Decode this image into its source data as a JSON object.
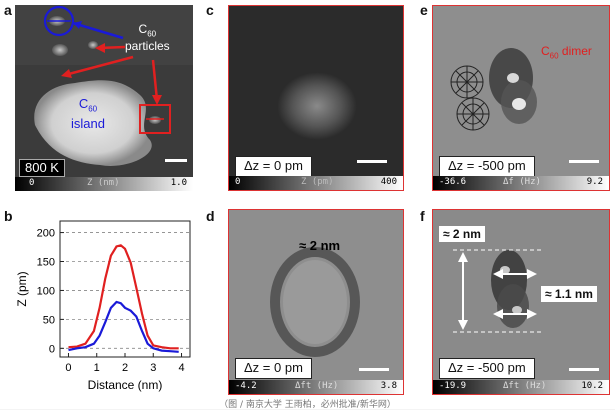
{
  "panels": {
    "a": {
      "letter": "a",
      "particles": "particles",
      "c60_sub": "60",
      "c": "C",
      "island": "island",
      "temp": "800 K",
      "cmin": "0",
      "cmax": "1.0",
      "cunit": "Z (nm)"
    },
    "b": {
      "letter": "b"
    },
    "c": {
      "letter": "c",
      "dz": "Δz = 0 pm",
      "cmin": "0",
      "cmax": "400",
      "cunit": "Z (pm)"
    },
    "d": {
      "letter": "d",
      "dz": "Δz = 0 pm",
      "size": "≈ 2 nm",
      "cmin": "-4.2",
      "cmax": "3.8",
      "cunit": "Δft (Hz)"
    },
    "e": {
      "letter": "e",
      "dz": "Δz = -500 pm",
      "dimer": "dimer",
      "cmin": "-36.6",
      "cmax": "9.2",
      "cunit": "Δf (Hz)"
    },
    "f": {
      "letter": "f",
      "dz": "Δz = -500 pm",
      "size": "≈ 2 nm",
      "width": "≈ 1.1 nm",
      "cmin": "-19.9",
      "cmax": "10.2",
      "cunit": "Δft (Hz)"
    }
  },
  "caption": "（图 / 南京大学 王雨柏，必州批准/新华网）",
  "colors": {
    "red": "#e02020",
    "blue": "#1a1ad8"
  },
  "chart_data": {
    "type": "line",
    "xlabel": "Distance (nm)",
    "ylabel": "Z (pm)",
    "xlim": [
      -0.3,
      4.3
    ],
    "ylim": [
      -15,
      220
    ],
    "xticks": [
      0,
      1,
      2,
      3,
      4
    ],
    "yticks": [
      0,
      50,
      100,
      150,
      200
    ],
    "grid": "horizontal dashed",
    "series": [
      {
        "color": "#e02020",
        "x": [
          0,
          0.3,
          0.6,
          0.9,
          1.1,
          1.3,
          1.5,
          1.7,
          1.85,
          2.0,
          2.2,
          2.4,
          2.6,
          2.8,
          3.0,
          3.3,
          3.6,
          3.9
        ],
        "y": [
          2,
          3,
          8,
          30,
          70,
          120,
          160,
          176,
          178,
          172,
          148,
          105,
          60,
          22,
          5,
          2,
          0,
          0
        ]
      },
      {
        "color": "#1a1ad8",
        "x": [
          0,
          0.3,
          0.6,
          0.9,
          1.1,
          1.3,
          1.5,
          1.7,
          1.85,
          2.0,
          2.2,
          2.4,
          2.6,
          2.8,
          3.0,
          3.3,
          3.6,
          3.9
        ],
        "y": [
          -3,
          0,
          2,
          8,
          22,
          45,
          70,
          80,
          78,
          70,
          65,
          55,
          30,
          8,
          0,
          -4,
          -5,
          -6
        ]
      }
    ]
  }
}
